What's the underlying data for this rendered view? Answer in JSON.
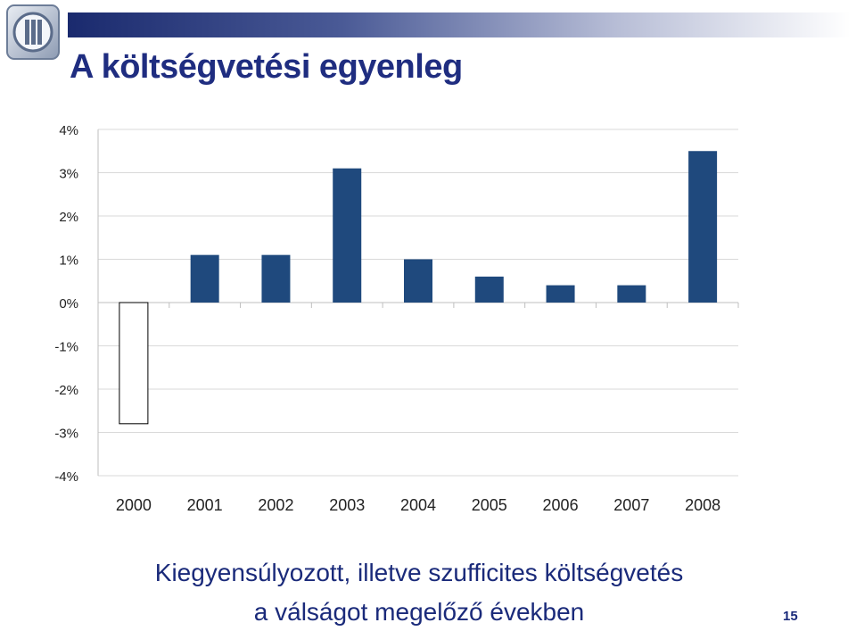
{
  "slide": {
    "title": "A költségvetési egyenleg",
    "caption_line1": "Kiegyensúlyozott, illetve szufficites költségvetés",
    "caption_line2": "a válságot megelőző években",
    "page_number": "15",
    "logo_icon": "institution-logo-icon"
  },
  "colors": {
    "bar_fill": "#1f497d",
    "negative_bar_fill": "#ffffff",
    "negative_bar_stroke": "#000000",
    "title": "#1f2d80",
    "caption": "#1a2a7a",
    "gridline": "#d9d9d9"
  },
  "chart_data": {
    "type": "bar",
    "categories": [
      "2000",
      "2001",
      "2002",
      "2003",
      "2004",
      "2005",
      "2006",
      "2007",
      "2008"
    ],
    "values": [
      -2.8,
      1.1,
      1.1,
      3.1,
      1.0,
      0.6,
      0.4,
      0.4,
      3.5
    ],
    "unit": "%",
    "ylim": [
      -4,
      4
    ],
    "yticks": [
      "-4%",
      "-3%",
      "-2%",
      "-1%",
      "0%",
      "1%",
      "2%",
      "3%",
      "4%"
    ],
    "grid": true,
    "legend": "none"
  }
}
